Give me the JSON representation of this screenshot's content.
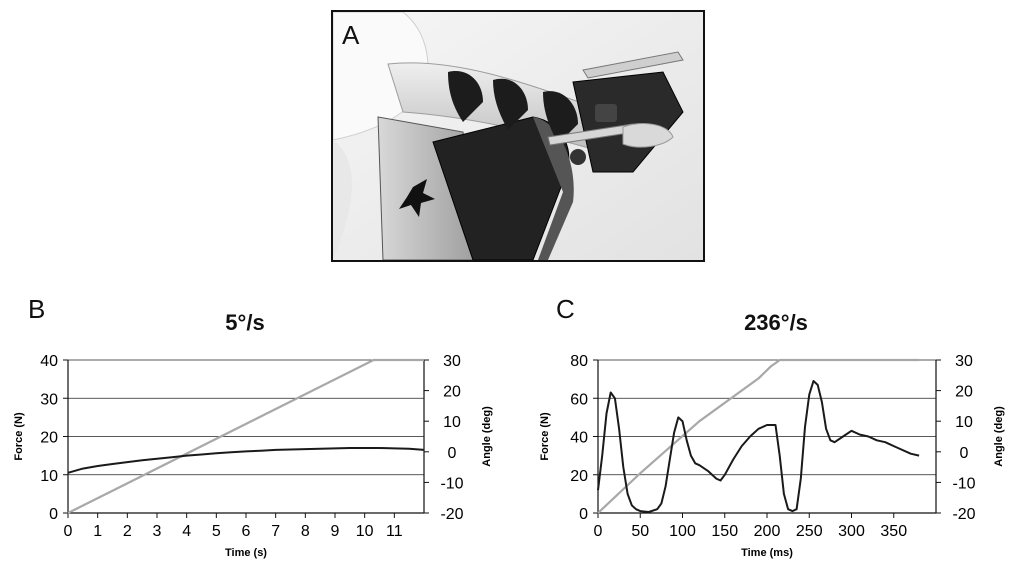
{
  "panels": {
    "a": {
      "letter": "A"
    },
    "b": {
      "letter": "B"
    },
    "c": {
      "letter": "C"
    }
  },
  "chart_data": [
    {
      "type": "line",
      "title": "5°/s",
      "xlabel": "Time (s)",
      "ylabel": "Force (N)",
      "y2label": "Angle (deg)",
      "xlim": [
        0,
        12
      ],
      "xticks": [
        0,
        1,
        2,
        3,
        4,
        5,
        6,
        7,
        8,
        9,
        10,
        11
      ],
      "ylim": [
        0,
        40
      ],
      "yticks": [
        0,
        10,
        20,
        30,
        40
      ],
      "y2lim": [
        -20,
        30
      ],
      "y2ticks": [
        -20,
        -10,
        0,
        10,
        20,
        30
      ],
      "grid": "horizontal",
      "series": [
        {
          "axis": "left",
          "color": "#1a1a1a",
          "x": [
            0,
            0.5,
            1,
            1.5,
            2,
            2.5,
            3,
            3.5,
            4,
            4.5,
            5,
            5.5,
            6,
            6.5,
            7,
            7.5,
            8,
            8.5,
            9,
            9.5,
            10,
            10.5,
            11,
            11.5,
            12
          ],
          "y": [
            10.5,
            11.6,
            12.3,
            12.8,
            13.3,
            13.8,
            14.2,
            14.6,
            15.0,
            15.3,
            15.6,
            15.9,
            16.1,
            16.3,
            16.5,
            16.6,
            16.7,
            16.8,
            16.9,
            17.0,
            17.0,
            17.0,
            16.9,
            16.8,
            16.5
          ]
        },
        {
          "axis": "right",
          "color": "#a8a8a8",
          "x": [
            0,
            10.3,
            10.5,
            12
          ],
          "y": [
            -20,
            30,
            30,
            30
          ]
        }
      ]
    },
    {
      "type": "line",
      "title": "236°/s",
      "xlabel": "Time (ms)",
      "ylabel": "Force (N)",
      "y2label": "Angle (deg)",
      "xlim": [
        0,
        400
      ],
      "xticks": [
        0,
        50,
        100,
        150,
        200,
        250,
        300,
        350
      ],
      "ylim": [
        0,
        80
      ],
      "yticks": [
        0,
        20,
        40,
        60,
        80
      ],
      "y2lim": [
        -20,
        30
      ],
      "y2ticks": [
        -20,
        -10,
        0,
        10,
        20,
        30
      ],
      "grid": "horizontal",
      "series": [
        {
          "axis": "left",
          "color": "#1a1a1a",
          "x": [
            0,
            5,
            10,
            15,
            20,
            25,
            30,
            35,
            40,
            45,
            50,
            60,
            70,
            75,
            80,
            85,
            90,
            95,
            100,
            105,
            110,
            115,
            120,
            130,
            140,
            145,
            150,
            160,
            170,
            180,
            190,
            200,
            210,
            215,
            220,
            225,
            230,
            235,
            240,
            245,
            250,
            255,
            260,
            265,
            270,
            275,
            280,
            290,
            300,
            310,
            320,
            330,
            340,
            350,
            360,
            370,
            380
          ],
          "y": [
            12,
            30,
            52,
            63,
            60,
            44,
            24,
            10,
            4,
            2,
            1,
            0.5,
            2,
            5,
            14,
            28,
            42,
            50,
            48,
            38,
            30,
            26,
            25,
            22,
            18,
            17,
            20,
            28,
            35,
            40,
            44,
            46,
            46,
            30,
            10,
            2,
            1,
            2,
            18,
            45,
            62,
            69,
            67,
            58,
            44,
            38,
            37,
            40,
            43,
            41,
            40,
            38,
            37,
            35,
            33,
            31,
            30
          ]
        },
        {
          "axis": "right",
          "color": "#a8a8a8",
          "x": [
            0,
            50,
            120,
            190,
            205,
            210,
            215,
            380
          ],
          "y": [
            -20,
            -7,
            10,
            24,
            28,
            29,
            30,
            30
          ]
        }
      ]
    }
  ]
}
